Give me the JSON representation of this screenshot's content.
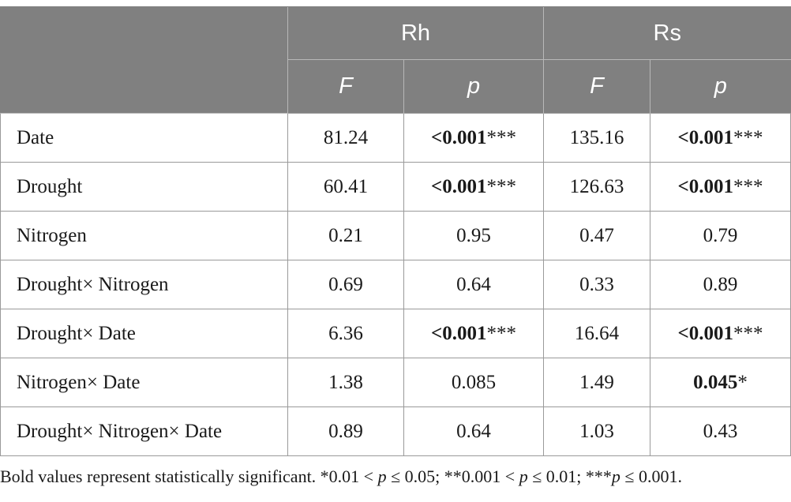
{
  "header": {
    "groups": [
      "Rh",
      "Rs"
    ],
    "subcols": [
      "F",
      "p",
      "F",
      "p"
    ]
  },
  "rows": [
    {
      "label": "Date",
      "rh_f": "81.24",
      "rh_p_bold": "<0.001",
      "rh_p_stars": "***",
      "rs_f": "135.16",
      "rs_p_bold": "<0.001",
      "rs_p_stars": "***"
    },
    {
      "label": "Drought",
      "rh_f": "60.41",
      "rh_p_bold": "<0.001",
      "rh_p_stars": "***",
      "rs_f": "126.63",
      "rs_p_bold": "<0.001",
      "rs_p_stars": "***"
    },
    {
      "label": "Nitrogen",
      "rh_f": "0.21",
      "rh_p": "0.95",
      "rs_f": "0.47",
      "rs_p": "0.79"
    },
    {
      "label": "Drought× Nitrogen",
      "rh_f": "0.69",
      "rh_p": "0.64",
      "rs_f": "0.33",
      "rs_p": "0.89"
    },
    {
      "label": "Drought× Date",
      "rh_f": "6.36",
      "rh_p_bold": "<0.001",
      "rh_p_stars": "***",
      "rs_f": "16.64",
      "rs_p_bold": "<0.001",
      "rs_p_stars": "***"
    },
    {
      "label": "Nitrogen× Date",
      "rh_f": "1.38",
      "rh_p": "0.085",
      "rs_f": "1.49",
      "rs_p_bold": "0.045",
      "rs_p_stars": "*"
    },
    {
      "label": "Drought× Nitrogen× Date",
      "rh_f": "0.89",
      "rh_p": "0.64",
      "rs_f": "1.03",
      "rs_p": "0.43"
    }
  ],
  "footnote": {
    "lead": "Bold values represent statistically significant. *0.01 < ",
    "p1": "p",
    "mid1": " ≤ 0.05; **0.001 < ",
    "p2": "p",
    "mid2": " ≤ 0.01; ***",
    "p3": "p",
    "tail": " ≤ 0.001."
  }
}
